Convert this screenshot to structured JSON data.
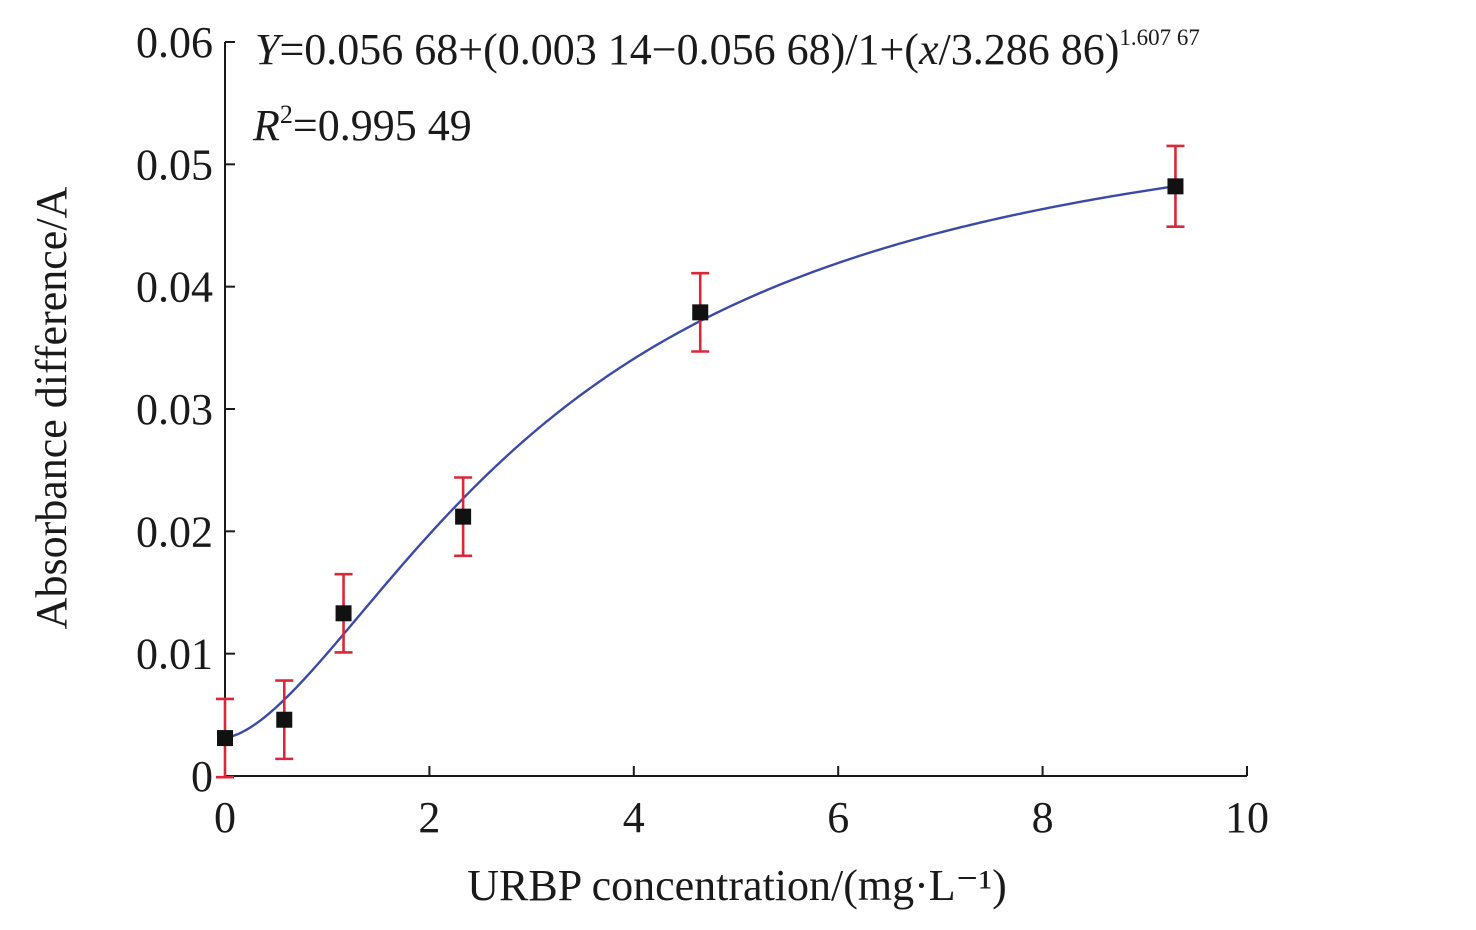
{
  "chart_data": {
    "type": "scatter",
    "xlabel": "URBP concentration/(mg·L⁻¹)",
    "ylabel": "Absorbance difference/A",
    "xlim": [
      0,
      10
    ],
    "ylim": [
      0,
      0.06
    ],
    "x_ticks": [
      0,
      2,
      4,
      6,
      8,
      10
    ],
    "x_tick_labels": [
      "0",
      "2",
      "4",
      "6",
      "8",
      "10"
    ],
    "y_ticks": [
      0,
      0.01,
      0.02,
      0.03,
      0.04,
      0.05,
      0.06
    ],
    "y_tick_labels": [
      "0",
      "0.01",
      "0.02",
      "0.03",
      "0.04",
      "0.05",
      "0.06"
    ],
    "grid": false,
    "legend": "none",
    "series": [
      {
        "type": "scatter",
        "x": [
          0,
          0.58,
          1.16,
          2.33,
          4.65,
          9.3
        ],
        "y": [
          0.0031,
          0.0046,
          0.0133,
          0.0212,
          0.0379,
          0.0482
        ],
        "yerr": [
          0.0032,
          0.0032,
          0.0032,
          0.0032,
          0.0032,
          0.0033
        ],
        "marker_color": "#111111",
        "errorbar_color": "#d8283a"
      },
      {
        "type": "fit-curve",
        "model": "logistic",
        "A1": 0.00314,
        "A2": 0.05668,
        "x0": 3.28686,
        "p": 1.60767,
        "x_range": [
          0,
          9.3
        ],
        "line_color": "#3b4aa6"
      }
    ],
    "annotations": {
      "eq_y": "Y",
      "eq_main": "=0.056 68+(0.003 14−0.056 68)/1+(",
      "eq_x": "x",
      "eq_tail": "/3.286 86)",
      "eq_exp": "1.607 67",
      "r2_r": "R",
      "r2_sup": "2",
      "r2_val": "=0.995 49"
    }
  }
}
